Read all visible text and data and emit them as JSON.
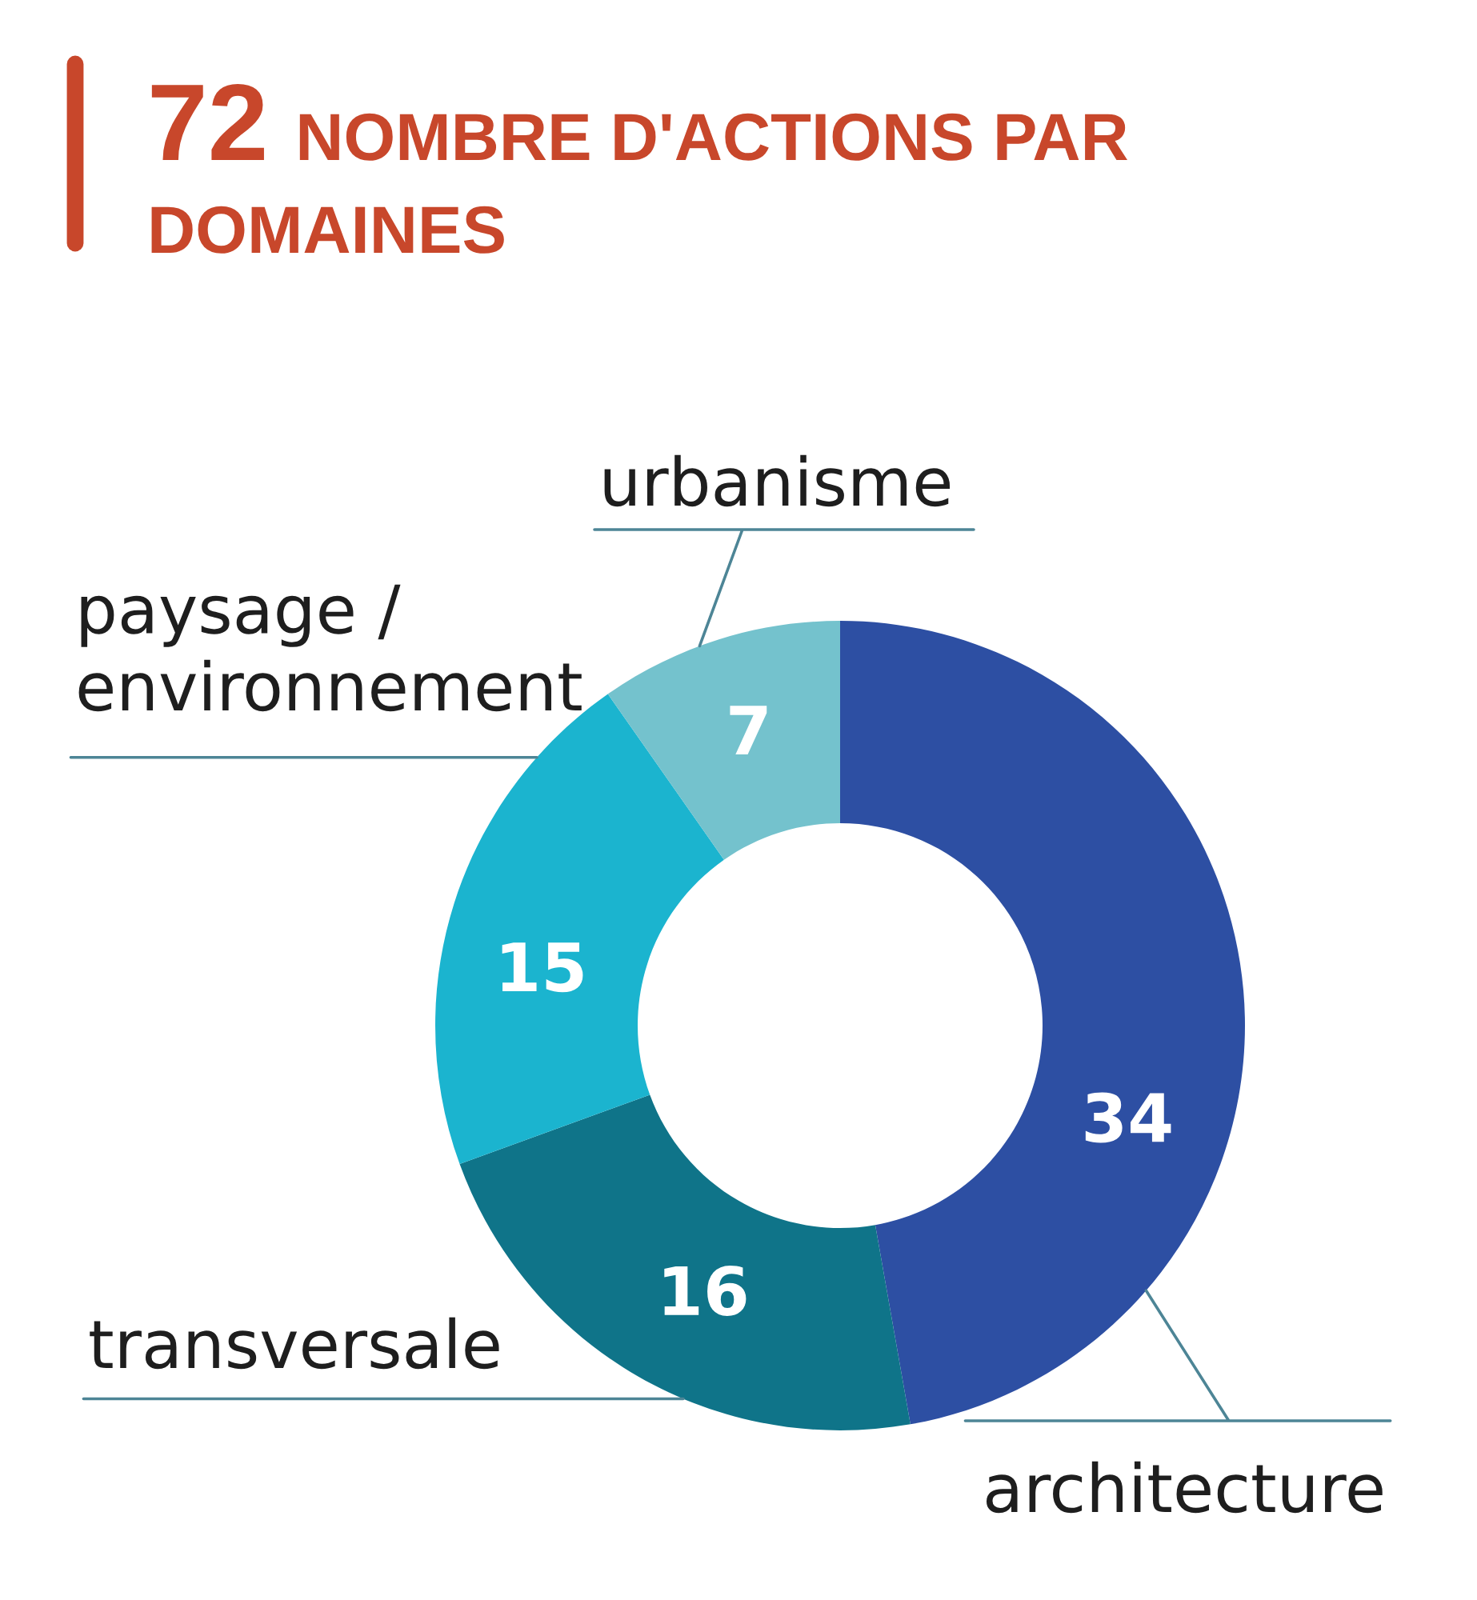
{
  "chart_data": {
    "type": "donut",
    "title": "72 NOMBRE D'ACTIONS PAR DOMAINES",
    "categories": [
      "architecture",
      "transversale",
      "paysage / environnement",
      "urbanisme"
    ],
    "values": [
      34,
      16,
      15,
      7
    ],
    "colors": [
      "#2d4fa3",
      "#0f7489",
      "#1bb4cf",
      "#74c2cd"
    ],
    "data_labels": true
  }
}
